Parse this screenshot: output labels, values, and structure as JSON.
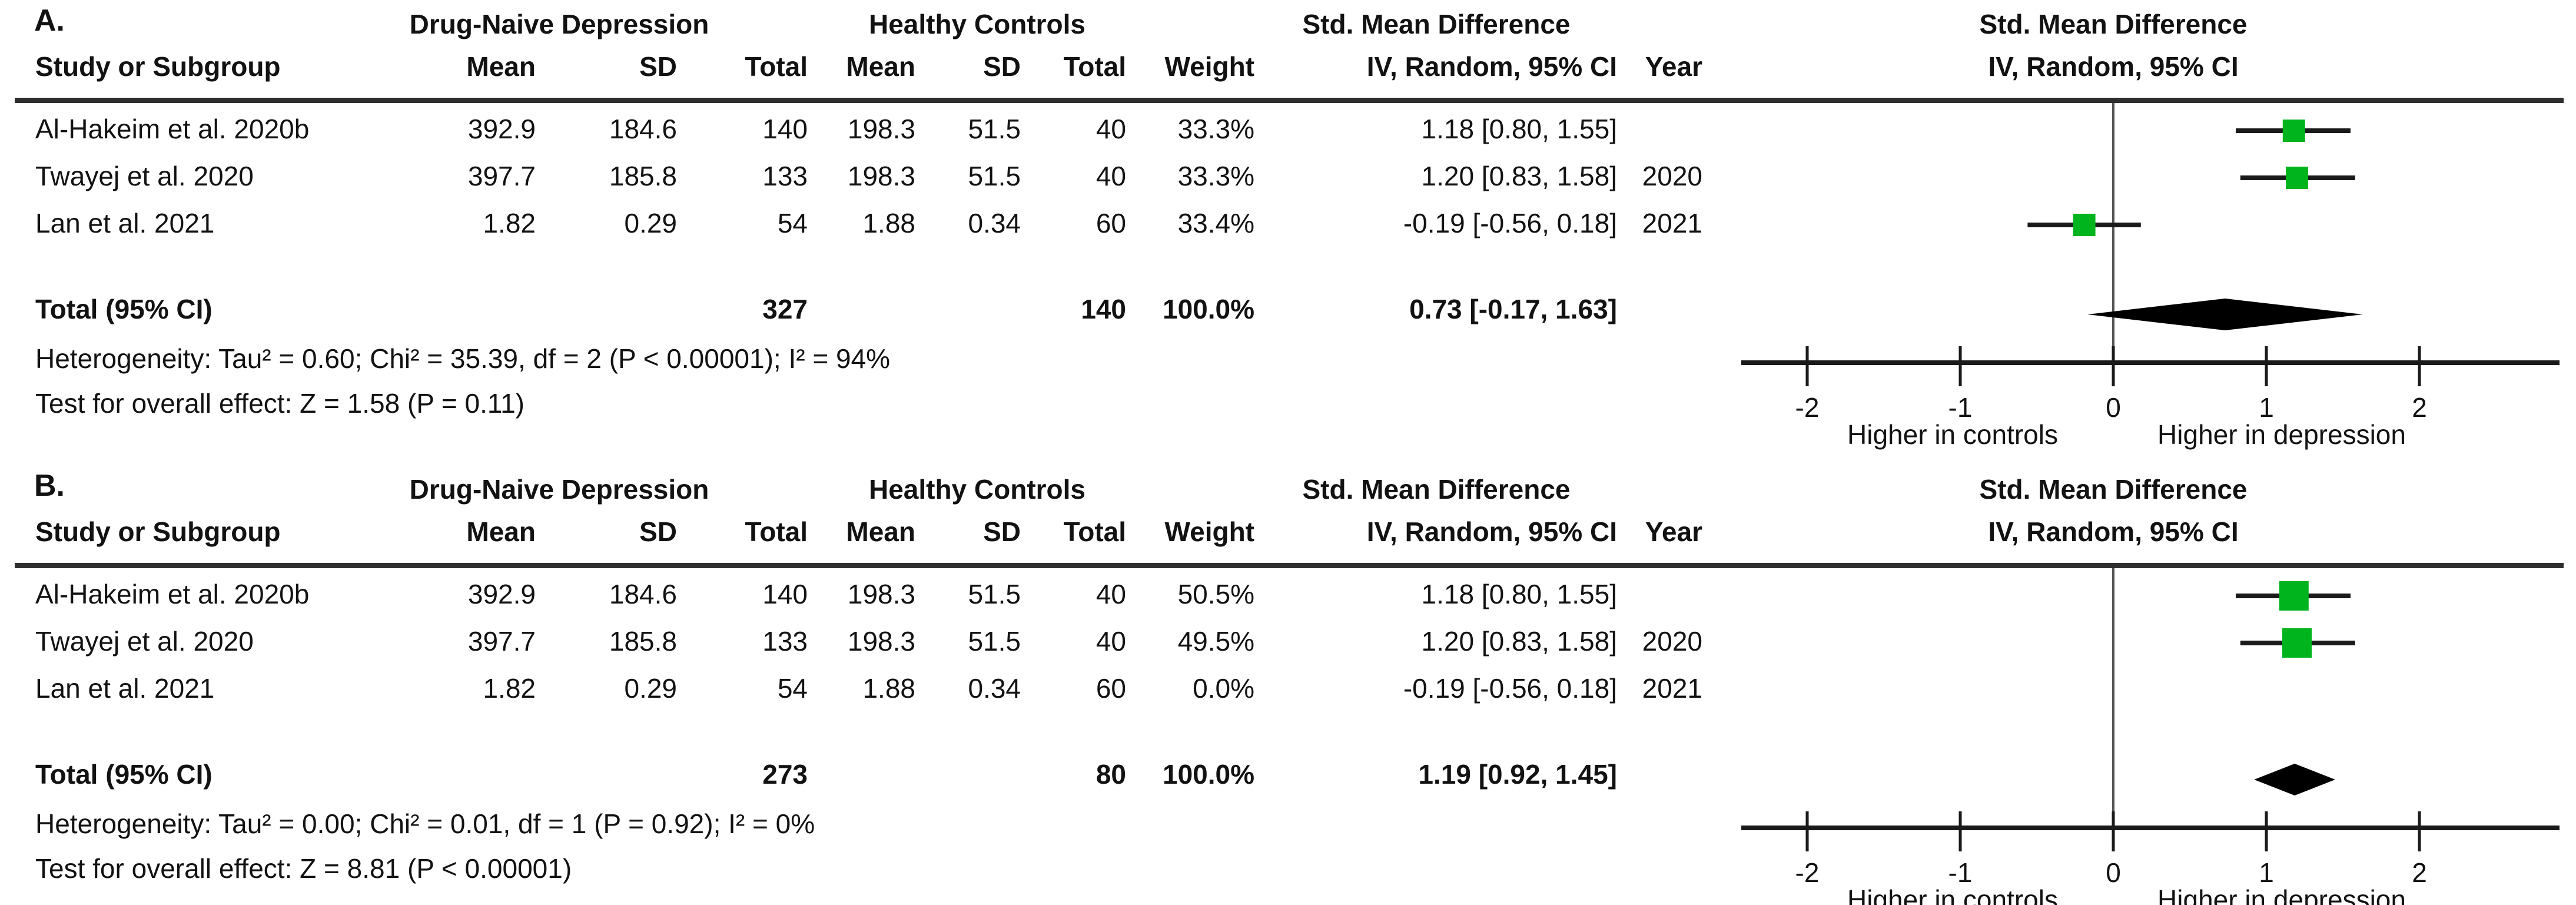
{
  "chart_data": [
    {
      "type": "forest",
      "panel_label": "A.",
      "group1_header": "Drug-Naive Depression",
      "group2_header": "Healthy Controls",
      "effect_header": "Std. Mean Difference",
      "plot_header_line1": "Std. Mean Difference",
      "plot_header_line2": "IV, Random, 95% CI",
      "col_headers": {
        "study": "Study or Subgroup",
        "mean": "Mean",
        "sd": "SD",
        "total": "Total",
        "weight": "Weight",
        "ci": "IV, Random, 95% CI",
        "year": "Year"
      },
      "rows": [
        {
          "study": "Al-Hakeim et al. 2020b",
          "mean1": "392.9",
          "sd1": "184.6",
          "total1": "140",
          "mean2": "198.3",
          "sd2": "51.5",
          "total2": "40",
          "weight": "33.3%",
          "weight_pct": 33.3,
          "ci_text": "1.18 [0.80, 1.55]",
          "year": "",
          "est": 1.18,
          "lo": 0.8,
          "hi": 1.55
        },
        {
          "study": "Twayej et al. 2020",
          "mean1": "397.7",
          "sd1": "185.8",
          "total1": "133",
          "mean2": "198.3",
          "sd2": "51.5",
          "total2": "40",
          "weight": "33.3%",
          "weight_pct": 33.3,
          "ci_text": "1.20 [0.83, 1.58]",
          "year": "2020",
          "est": 1.2,
          "lo": 0.83,
          "hi": 1.58
        },
        {
          "study": "Lan et al. 2021",
          "mean1": "1.82",
          "sd1": "0.29",
          "total1": "54",
          "mean2": "1.88",
          "sd2": "0.34",
          "total2": "60",
          "weight": "33.4%",
          "weight_pct": 33.4,
          "ci_text": "-0.19 [-0.56, 0.18]",
          "year": "2021",
          "est": -0.19,
          "lo": -0.56,
          "hi": 0.18
        }
      ],
      "total_row": {
        "label": "Total (95% CI)",
        "total1": "327",
        "total2": "140",
        "weight": "100.0%",
        "ci_text": "0.73 [-0.17, 1.63]",
        "est": 0.73,
        "lo": -0.17,
        "hi": 1.63
      },
      "heterogeneity": "Heterogeneity: Tau² = 0.60; Chi² = 35.39, df = 2 (P < 0.00001); I² = 94%",
      "overall_effect": "Test for overall effect: Z = 1.58 (P = 0.11)",
      "axis": {
        "min": -2,
        "max": 2,
        "ticks": [
          -2,
          -1,
          0,
          1,
          2
        ],
        "left_label": "Higher in controls",
        "right_label": "Higher in depression"
      },
      "marker_color": "#00b41e",
      "diamond_color": "#000000"
    },
    {
      "type": "forest",
      "panel_label": "B.",
      "group1_header": "Drug-Naive Depression",
      "group2_header": "Healthy Controls",
      "effect_header": "Std. Mean Difference",
      "plot_header_line1": "Std. Mean Difference",
      "plot_header_line2": "IV, Random, 95% CI",
      "col_headers": {
        "study": "Study or Subgroup",
        "mean": "Mean",
        "sd": "SD",
        "total": "Total",
        "weight": "Weight",
        "ci": "IV, Random, 95% CI",
        "year": "Year"
      },
      "rows": [
        {
          "study": "Al-Hakeim et al. 2020b",
          "mean1": "392.9",
          "sd1": "184.6",
          "total1": "140",
          "mean2": "198.3",
          "sd2": "51.5",
          "total2": "40",
          "weight": "50.5%",
          "weight_pct": 50.5,
          "ci_text": "1.18 [0.80, 1.55]",
          "year": "",
          "est": 1.18,
          "lo": 0.8,
          "hi": 1.55
        },
        {
          "study": "Twayej et al. 2020",
          "mean1": "397.7",
          "sd1": "185.8",
          "total1": "133",
          "mean2": "198.3",
          "sd2": "51.5",
          "total2": "40",
          "weight": "49.5%",
          "weight_pct": 49.5,
          "ci_text": "1.20 [0.83, 1.58]",
          "year": "2020",
          "est": 1.2,
          "lo": 0.83,
          "hi": 1.58
        },
        {
          "study": "Lan et al. 2021",
          "mean1": "1.82",
          "sd1": "0.29",
          "total1": "54",
          "mean2": "1.88",
          "sd2": "0.34",
          "total2": "60",
          "weight": "0.0%",
          "weight_pct": 0.0,
          "ci_text": "-0.19 [-0.56, 0.18]",
          "year": "2021",
          "est": -0.19,
          "lo": -0.56,
          "hi": 0.18
        }
      ],
      "total_row": {
        "label": "Total (95% CI)",
        "total1": "273",
        "total2": "80",
        "weight": "100.0%",
        "ci_text": "1.19 [0.92, 1.45]",
        "est": 1.19,
        "lo": 0.92,
        "hi": 1.45
      },
      "heterogeneity": "Heterogeneity: Tau² = 0.00; Chi² = 0.01, df = 1 (P = 0.92); I² = 0%",
      "overall_effect": "Test for overall effect: Z = 8.81 (P < 0.00001)",
      "axis": {
        "min": -2,
        "max": 2,
        "ticks": [
          -2,
          -1,
          0,
          1,
          2
        ],
        "left_label": "Higher in controls",
        "right_label": "Higher in depression"
      },
      "marker_color": "#00b41e",
      "diamond_color": "#000000"
    }
  ]
}
